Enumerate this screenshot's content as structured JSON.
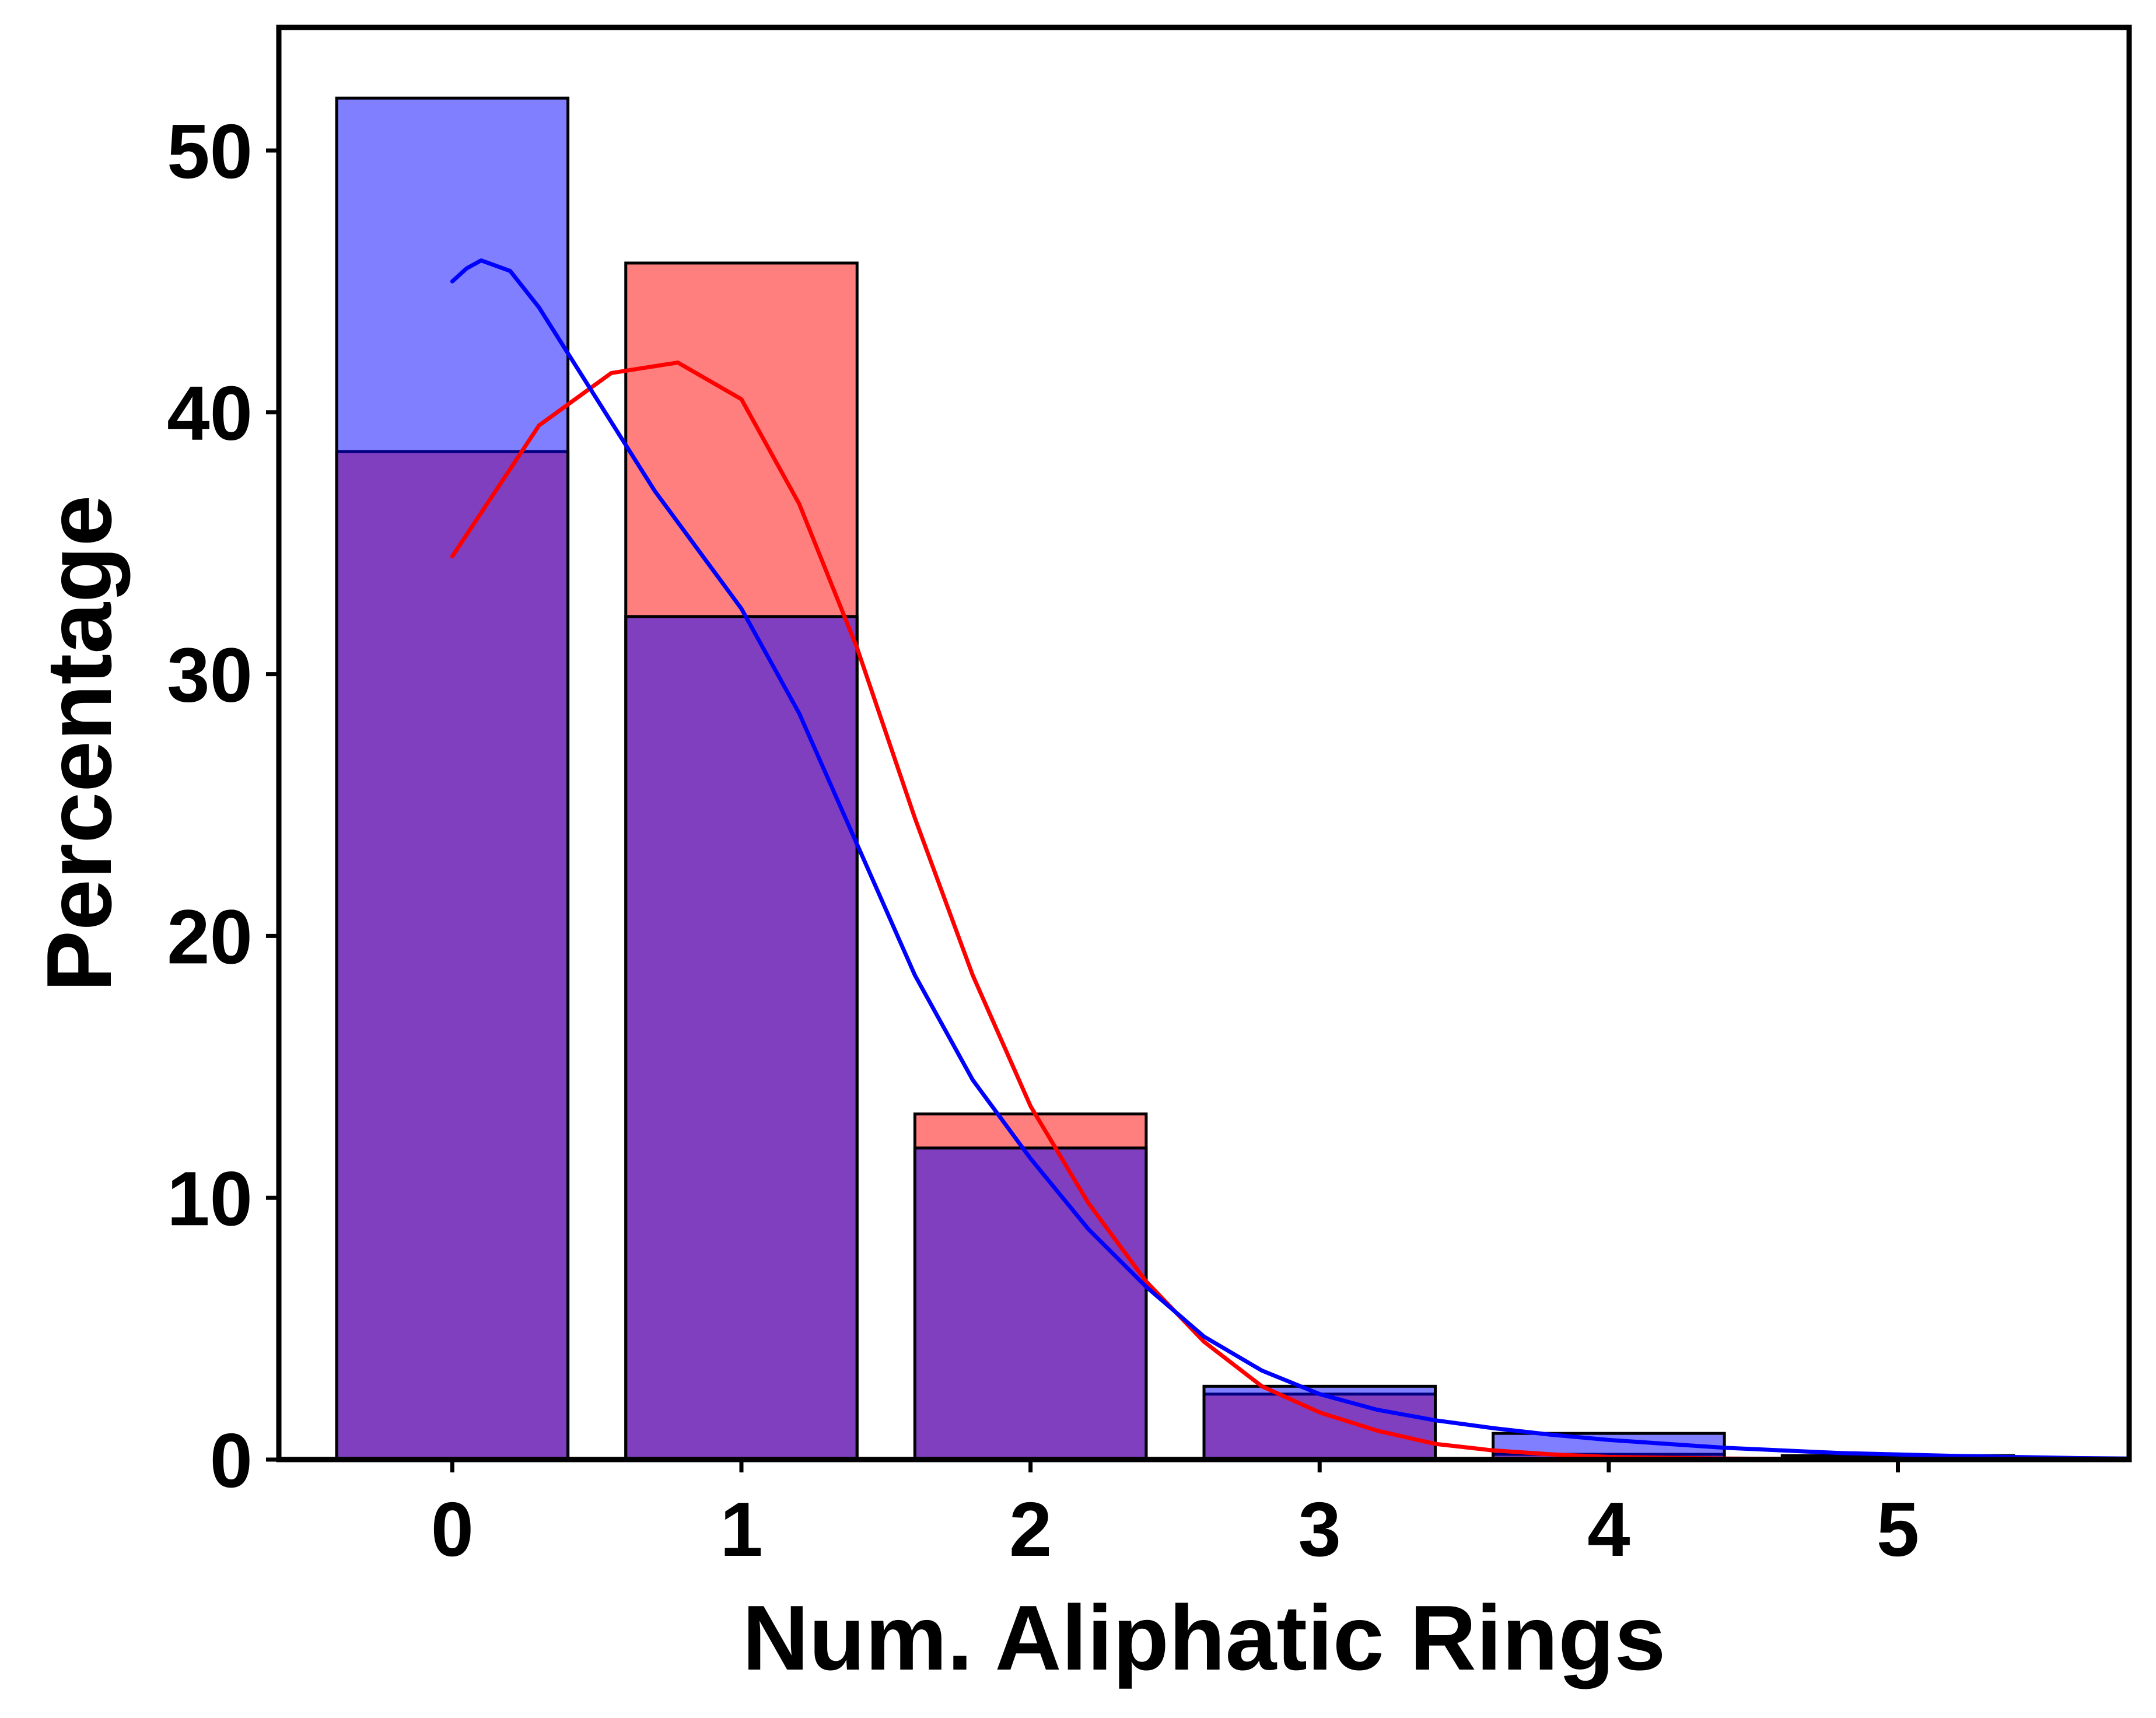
{
  "chart_data": {
    "type": "bar",
    "xlabel": "Num. Aliphatic Rings",
    "ylabel": "Percentage",
    "xlim": [
      -0.6,
      5.8
    ],
    "ylim": [
      0,
      54.7
    ],
    "xticks": [
      "0",
      "1",
      "2",
      "3",
      "4",
      "5"
    ],
    "yticks": [
      "0",
      "10",
      "20",
      "30",
      "40",
      "50"
    ],
    "grid": false,
    "legend": "none",
    "categories": [
      0,
      1,
      2,
      3,
      4,
      5
    ],
    "bar_width": 0.8,
    "series": [
      {
        "color": "#ff0000",
        "fill_alpha": 0.5,
        "values": [
          38.5,
          45.7,
          13.2,
          2.5,
          0.2,
          0.0
        ],
        "kde": [
          [
            0,
            34.5
          ],
          [
            0.3,
            39.5
          ],
          [
            0.55,
            41.5
          ],
          [
            0.78,
            41.9
          ],
          [
            1.0,
            40.5
          ],
          [
            1.2,
            36.5
          ],
          [
            1.4,
            31.0
          ],
          [
            1.6,
            24.5
          ],
          [
            1.8,
            18.5
          ],
          [
            2.0,
            13.5
          ],
          [
            2.2,
            9.8
          ],
          [
            2.4,
            6.8
          ],
          [
            2.6,
            4.5
          ],
          [
            2.8,
            2.8
          ],
          [
            3.0,
            1.8
          ],
          [
            3.2,
            1.1
          ],
          [
            3.4,
            0.6
          ],
          [
            3.6,
            0.35
          ],
          [
            3.8,
            0.2
          ],
          [
            4.0,
            0.1
          ],
          [
            4.4,
            0.04
          ],
          [
            5.0,
            0.0
          ]
        ]
      },
      {
        "color": "#0000ff",
        "fill_alpha": 0.5,
        "values": [
          52.0,
          32.2,
          11.9,
          2.8,
          1.0,
          0.15
        ],
        "kde": [
          [
            0,
            45.0
          ],
          [
            0.05,
            45.5
          ],
          [
            0.1,
            45.8
          ],
          [
            0.2,
            45.4
          ],
          [
            0.3,
            44.0
          ],
          [
            0.5,
            40.5
          ],
          [
            0.7,
            37.0
          ],
          [
            0.9,
            34.0
          ],
          [
            1.0,
            32.5
          ],
          [
            1.2,
            28.5
          ],
          [
            1.4,
            23.5
          ],
          [
            1.6,
            18.5
          ],
          [
            1.8,
            14.5
          ],
          [
            2.0,
            11.5
          ],
          [
            2.2,
            8.8
          ],
          [
            2.4,
            6.6
          ],
          [
            2.6,
            4.7
          ],
          [
            2.8,
            3.4
          ],
          [
            3.0,
            2.5
          ],
          [
            3.2,
            1.9
          ],
          [
            3.4,
            1.5
          ],
          [
            3.6,
            1.2
          ],
          [
            3.8,
            0.95
          ],
          [
            4.0,
            0.75
          ],
          [
            4.4,
            0.45
          ],
          [
            4.8,
            0.25
          ],
          [
            5.2,
            0.14
          ],
          [
            5.6,
            0.06
          ],
          [
            5.8,
            0.04
          ]
        ]
      }
    ],
    "overlap_color": "#bf3f7f"
  }
}
